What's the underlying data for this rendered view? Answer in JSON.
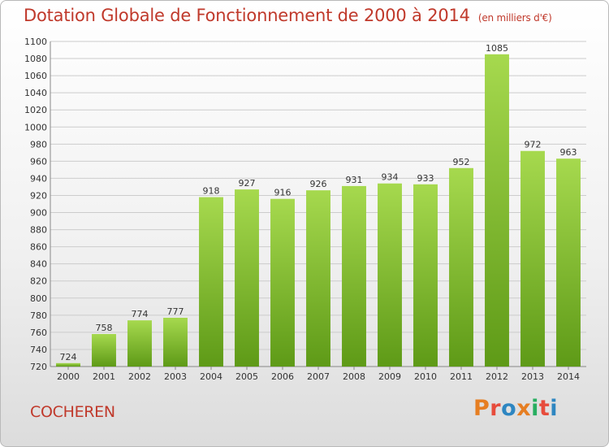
{
  "header": {
    "title": "Dotation Globale de Fonctionnement de 2000 à 2014",
    "subtitle": "(en milliers d'€)"
  },
  "footer": {
    "commune": "COCHEREN",
    "logo_text": "Proxiti"
  },
  "colors": {
    "title": "#c0392b",
    "bar_light": "#a6d94e",
    "bar_dark": "#5e9a17",
    "grid": "#cccccc",
    "logo": [
      "#e67e22",
      "#e74c3c",
      "#2e86c1",
      "#e67e22",
      "#27ae60",
      "#e74c3c",
      "#2e86c1"
    ]
  },
  "chart_data": {
    "type": "bar",
    "title": "Dotation Globale de Fonctionnement de 2000 à 2014",
    "subtitle": "(en milliers d'€)",
    "xlabel": "",
    "ylabel": "",
    "categories": [
      "2000",
      "2001",
      "2002",
      "2003",
      "2004",
      "2005",
      "2006",
      "2007",
      "2008",
      "2009",
      "2010",
      "2011",
      "2012",
      "2013",
      "2014"
    ],
    "values": [
      724,
      758,
      774,
      777,
      918,
      927,
      916,
      926,
      931,
      934,
      933,
      952,
      1085,
      972,
      963
    ],
    "ylim": [
      720,
      1100
    ],
    "yticks": [
      720,
      740,
      760,
      780,
      800,
      820,
      840,
      860,
      880,
      900,
      920,
      940,
      960,
      980,
      1000,
      1020,
      1040,
      1060,
      1080,
      1100
    ],
    "grid": true,
    "data_labels": true
  }
}
